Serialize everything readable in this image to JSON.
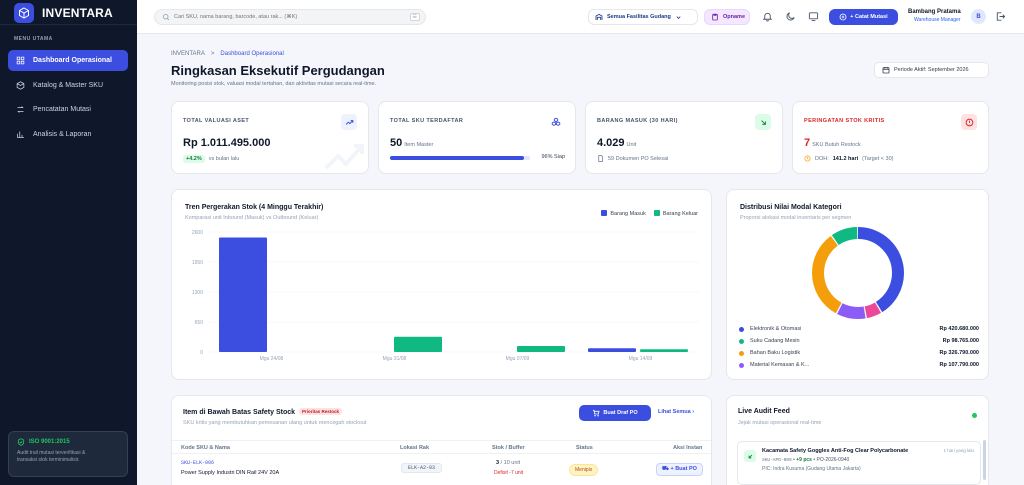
{
  "app": {
    "name": "INVENTARA"
  },
  "sidebar": {
    "section_label": "MENU UTAMA",
    "items": [
      {
        "label": "Dashboard Operasional",
        "icon": "dashboard-icon",
        "active": true
      },
      {
        "label": "Katalog & Master SKU",
        "icon": "package-icon",
        "active": false
      },
      {
        "label": "Pencatatan Mutasi",
        "icon": "transfer-icon",
        "active": false
      },
      {
        "label": "Analisis & Laporan",
        "icon": "bar-chart-icon",
        "active": false
      }
    ],
    "iso": {
      "title": "ISO 9001:2015",
      "desc_line1": "Audit trail mutasi terverifikasi &",
      "desc_line2": "transaksi stok terminimalisir."
    }
  },
  "topbar": {
    "search_placeholder": "Cari SKU, nama barang, barcode, atau rak... (⌘K)",
    "search_kbd": "⌘K",
    "facility": "Semua Fasilitas Gudang",
    "opname": "Opname",
    "primary_button": "+ Catat Mutasi",
    "user_name": "Bambang Pratama",
    "user_role": "Warehouse Manager",
    "avatar_initial": "B"
  },
  "header": {
    "breadcrumb_root": "INVENTARA",
    "breadcrumb_sep": ">",
    "breadcrumb_current": "Dashboard Operasional",
    "title": "Ringkasan Eksekutif Pergudangan",
    "subtitle": "Monitoring posisi stok, valuasi modal tertahan, dan aktivitas mutasi secara real-time.",
    "period": "Periode Aktif: September 2026"
  },
  "kpis": [
    {
      "label": "TOTAL VALUASI ASET",
      "value": "Rp 1.011.495.000",
      "badge": "+4.2%",
      "foot": "vs bulan lalu"
    },
    {
      "label": "TOTAL SKU TERDAFTAR",
      "value": "50",
      "unit": "Item Master",
      "progress": 0.96,
      "progress_text": "96% Siap"
    },
    {
      "label": "BARANG MASUK (30 HARI)",
      "value": "4.029",
      "unit": "Unit",
      "foot": "59 Dokumen PO Selesai"
    },
    {
      "label": "PERINGATAN STOK KRITIS",
      "value": "7",
      "unit": "SKU Butuh Restock",
      "foot_label": "DOH:",
      "foot_value": "141.2 hari",
      "foot_target": "(Target < 30)"
    }
  ],
  "colors": {
    "primary": "#3b4ee0",
    "inbound": "#3b4ee0",
    "outbound": "#10b981",
    "danger": "#dc2626"
  },
  "trend": {
    "title": "Tren Pergerakan Stok (4 Minggu Terakhir)",
    "subtitle": "Komparasi unit Inbound (Masuk) vs Outbound (Keluar)"
  },
  "chart_data": {
    "type": "bar",
    "categories": [
      "Mgu 24/08",
      "Mgu 31/08",
      "Mgu 07/09",
      "Mgu 14/09"
    ],
    "series": [
      {
        "name": "Barang Masuk",
        "values": [
          2480,
          0,
          0,
          80
        ]
      },
      {
        "name": "Barang Keluar",
        "values": [
          0,
          330,
          130,
          60
        ]
      }
    ],
    "yticks": [
      "2600",
      "1950",
      "1300",
      "650",
      "0"
    ],
    "ylim": [
      0,
      2600
    ]
  },
  "distribution": {
    "title": "Distribusi Nilai Modal Kategori",
    "subtitle": "Proporsi alokasi modal inventaris per segmen",
    "categories": [
      {
        "name": "Elektronik & Otomasi",
        "value": "Rp 420.680.000",
        "amount": 420680000,
        "color": "#3b4ee0"
      },
      {
        "name": "Suku Cadang Mesin",
        "value": "Rp 98.765.000",
        "amount": 98765000,
        "color": "#10b981"
      },
      {
        "name": "Bahan Baku Logistik",
        "value": "Rp 326.790.000",
        "amount": 326790000,
        "color": "#f59e0b"
      },
      {
        "name": "Material Kemasan & K...",
        "value": "Rp 107.790.000",
        "amount": 107790000,
        "color": "#8b5cf6"
      },
      {
        "name": "",
        "amount": 57470000,
        "color": "#ec4899"
      }
    ]
  },
  "safety": {
    "title": "Item di Bawah Batas Safety Stock",
    "tag": "Prioritas Restock",
    "subtitle": "SKU kritis yang membutuhkan pemesanan ulang untuk mencegah stockout",
    "draft_button": "Buat Draf PO",
    "see_all": "Lihat Semua",
    "columns": [
      "Kode SKU & Nama",
      "Lokasi Rak",
      "Stok / Buffer",
      "Status",
      "Aksi Instan"
    ],
    "rows": [
      {
        "sku": "SKU-ELK-006",
        "name": "Power Supply Industri DIN Rail 24V 20A",
        "location": "ELK-A2-03",
        "stock": "3",
        "buffer": "/ 10 unit",
        "deficit": "Defisit -7 unit",
        "status": "Menipis",
        "action": "+ Buat PO"
      }
    ]
  },
  "audit": {
    "title": "Live Audit Feed",
    "subtitle": "Jejak mutasi operasional real-time",
    "items": [
      {
        "title": "Kacamata Safety Goggles Anti-Fog Clear Polycarbonate",
        "time": "1 hari yang lalu",
        "sku": "SKU-APD-009",
        "qty": "+9 pcs",
        "ref": "PO-2026-0940",
        "pic": "PIC: Indra Kusuma (Gudang Utama Jakarta)"
      }
    ]
  }
}
